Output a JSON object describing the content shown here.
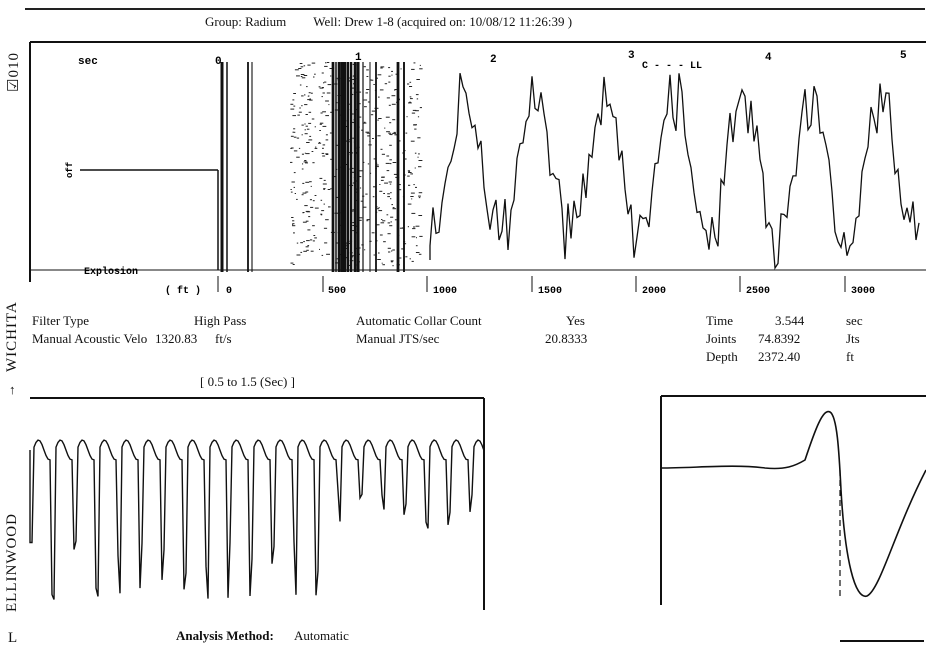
{
  "header": {
    "group": "Group: Radium",
    "well": "Well: Drew 1-8 (acquired on: 10/08/12 11:26:39 )"
  },
  "side_labels": {
    "top": "☑010",
    "wichita": "WICHITA",
    "arrow": "↑",
    "ellinwood": "ELLINWOOD",
    "bottom": "L"
  },
  "top_panel": {
    "time_unit": "sec",
    "time_ticks": [
      "0",
      "1",
      "2",
      "3",
      "4",
      "5"
    ],
    "explosion": "Explosion",
    "depth_unit": "( ft )",
    "depth_ticks": [
      "0",
      "500",
      "1000",
      "1500",
      "2000",
      "2500",
      "3000"
    ],
    "marker": "C - - - LL",
    "y_mark": "off"
  },
  "params": {
    "filter_type_label": "Filter Type",
    "filter_type_value": "High Pass",
    "velocity_label": "Manual Acoustic Velo",
    "velocity_value": "1320.83",
    "velocity_unit": "ft/s",
    "collar_label": "Automatic Collar Count",
    "collar_value": "Yes",
    "jts_label": "Manual JTS/sec",
    "jts_value": "20.8333"
  },
  "readout": {
    "time_label": "Time",
    "time_value": "3.544",
    "time_unit": "sec",
    "joints_label": "Joints",
    "joints_value": "74.8392",
    "joints_unit": "Jts",
    "depth_label": "Depth",
    "depth_value": "2372.40",
    "depth_unit": "ft"
  },
  "zoom_panel": {
    "range_label": "[ 0.5  to  1.5 (Sec) ]"
  },
  "analysis": {
    "label": "Analysis Method:",
    "value": "Automatic"
  }
}
